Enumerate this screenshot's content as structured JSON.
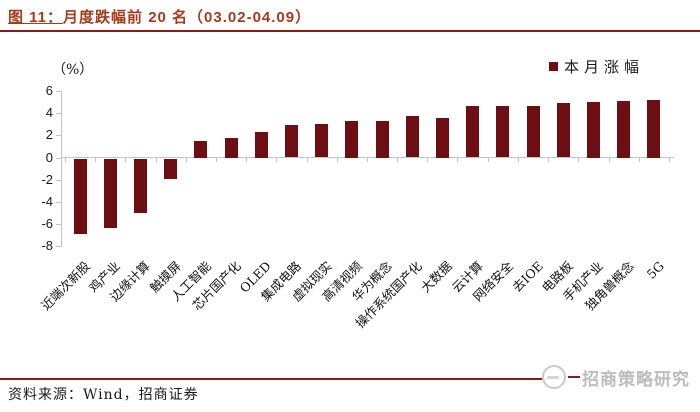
{
  "figure": {
    "caption_prefix": "图 11：",
    "caption_text": "月度跌幅前 20 名（03.02-04.09）"
  },
  "chart_data": {
    "type": "bar",
    "title": "月度跌幅前 20 名（03.02-04.09）",
    "ylabel": "（%）",
    "xlabel": "",
    "ylim": [
      -8,
      6
    ],
    "yticks": [
      6,
      4,
      2,
      0,
      -2,
      -4,
      -6,
      -8
    ],
    "grid": false,
    "legend_position": "top-right",
    "categories": [
      "近端次新股",
      "鸡产业",
      "边缘计算",
      "触摸屏",
      "人工智能",
      "芯片国产化",
      "OLED",
      "集成电路",
      "虚拟现实",
      "高清视频",
      "华为概念",
      "操作系统国产化",
      "大数据",
      "云计算",
      "网络安全",
      "去IOE",
      "电路板",
      "手机产业",
      "独角兽概念",
      "5G"
    ],
    "series": [
      {
        "name": "本月涨幅",
        "values": [
          -6.8,
          -6.2,
          -4.9,
          -1.8,
          1.5,
          1.8,
          2.3,
          2.9,
          3.0,
          3.3,
          3.3,
          3.7,
          3.6,
          4.6,
          4.6,
          4.6,
          4.9,
          5.0,
          5.1,
          5.2
        ]
      }
    ]
  },
  "footer": {
    "source": "资料来源：Wind，招商证券",
    "watermark": "招商策略研究"
  },
  "colors": {
    "title_red": "#A33C1E",
    "rule_red": "#8A1B12",
    "bar_maroon": "#6D0F12",
    "axis_gray": "#C3C3C3",
    "watermark_gray": "#BCBCBC"
  }
}
